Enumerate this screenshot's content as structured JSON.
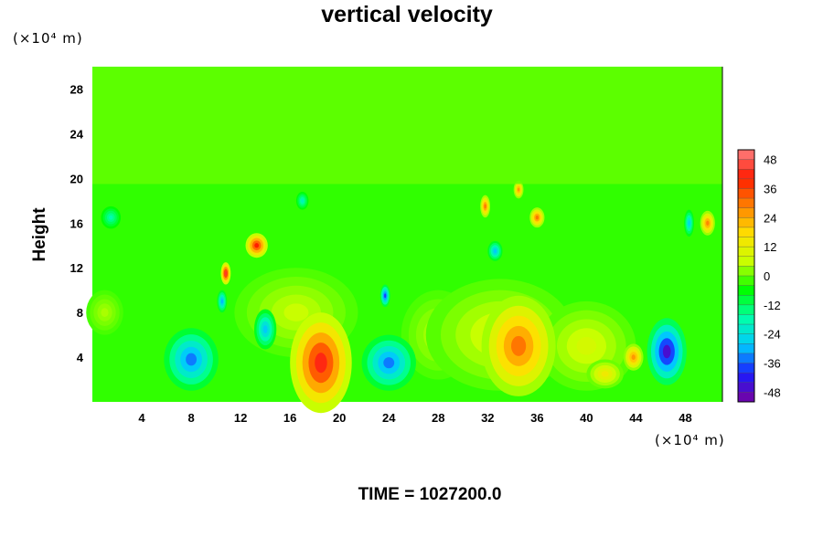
{
  "chart_data": {
    "type": "heatmap",
    "title": "vertical velocity",
    "ylabel": "Height",
    "xlabel": "",
    "x_unit_label": "(×10⁴ m)",
    "y_unit_label": "(×10⁴ m)",
    "time_label": "TIME = 1027200.0",
    "xlim": [
      0,
      51
    ],
    "ylim": [
      0,
      30
    ],
    "x_ticks": [
      4,
      8,
      12,
      16,
      20,
      24,
      28,
      32,
      36,
      40,
      44,
      48
    ],
    "y_ticks": [
      4,
      8,
      12,
      16,
      20,
      24,
      28
    ],
    "colorbar": {
      "range": [
        -52,
        52
      ],
      "tick_values": [
        48,
        36,
        24,
        12,
        0,
        -12,
        -24,
        -36,
        -48
      ],
      "colormap": [
        "#7a009e",
        "#1a1aff",
        "#00c8ff",
        "#00ffaa",
        "#00ff00",
        "#c8ff00",
        "#ffe000",
        "#ff8000",
        "#ff1a00",
        "#ff8080"
      ]
    },
    "background_value": -3,
    "features": [
      {
        "x": 18.5,
        "y": 3.5,
        "value": 42,
        "width": 2.5,
        "height": 4.5
      },
      {
        "x": 34.5,
        "y": 5,
        "value": 30,
        "width": 3,
        "height": 4.5
      },
      {
        "x": 46.5,
        "y": 4.5,
        "value": -46,
        "width": 1.6,
        "height": 3
      },
      {
        "x": 13.3,
        "y": 14,
        "value": 40,
        "width": 0.9,
        "height": 1.1
      },
      {
        "x": 10.8,
        "y": 11.5,
        "value": 44,
        "width": 0.4,
        "height": 1
      },
      {
        "x": 8,
        "y": 3.8,
        "value": -34,
        "width": 2.2,
        "height": 2.8
      },
      {
        "x": 24,
        "y": 3.5,
        "value": -34,
        "width": 2.2,
        "height": 2.5
      },
      {
        "x": 14,
        "y": 6.5,
        "value": -28,
        "width": 0.9,
        "height": 1.8
      },
      {
        "x": 23.7,
        "y": 9.5,
        "value": -38,
        "width": 0.4,
        "height": 1
      },
      {
        "x": 10.5,
        "y": 9,
        "value": -30,
        "width": 0.4,
        "height": 1
      },
      {
        "x": 43.8,
        "y": 4,
        "value": 26,
        "width": 0.8,
        "height": 1.2
      },
      {
        "x": 41.5,
        "y": 2.5,
        "value": 14,
        "width": 1.5,
        "height": 1.3
      },
      {
        "x": 31.8,
        "y": 17.5,
        "value": 30,
        "width": 0.4,
        "height": 1
      },
      {
        "x": 36,
        "y": 16.5,
        "value": 30,
        "width": 0.6,
        "height": 0.9
      },
      {
        "x": 49.8,
        "y": 16,
        "value": 28,
        "width": 0.6,
        "height": 1.1
      },
      {
        "x": 34.5,
        "y": 19,
        "value": 26,
        "width": 0.4,
        "height": 0.8
      },
      {
        "x": 32.6,
        "y": 13.5,
        "value": -28,
        "width": 0.6,
        "height": 0.9
      },
      {
        "x": 48.3,
        "y": 16,
        "value": -26,
        "width": 0.4,
        "height": 1.2
      },
      {
        "x": 17,
        "y": 18,
        "value": -20,
        "width": 0.5,
        "height": 0.8
      },
      {
        "x": 1.5,
        "y": 16.5,
        "value": -18,
        "width": 0.8,
        "height": 1
      },
      {
        "x": 16.5,
        "y": 8,
        "value": 6,
        "width": 5,
        "height": 4
      },
      {
        "x": 33,
        "y": 6,
        "value": 8,
        "width": 6,
        "height": 5
      },
      {
        "x": 40,
        "y": 5,
        "value": 8,
        "width": 4,
        "height": 4
      },
      {
        "x": 28,
        "y": 6,
        "value": 5,
        "width": 3,
        "height": 4
      },
      {
        "x": 1,
        "y": 8,
        "value": 4,
        "width": 1.5,
        "height": 2
      }
    ]
  }
}
